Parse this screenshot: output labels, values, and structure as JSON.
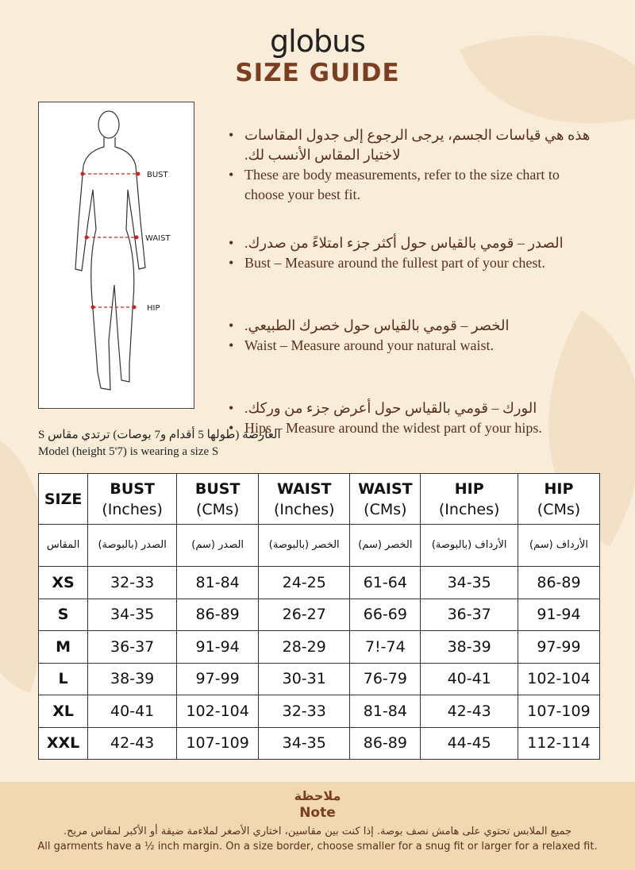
{
  "brand": "globus",
  "title": "SIZE GUIDE",
  "figure_labels": {
    "bust": "BUST",
    "waist": "WAIST",
    "hip": "HIP"
  },
  "bullets": [
    {
      "ar": "هذه هي قياسات الجسم، يرجى الرجوع إلى جدول المقاسات لاختيار المقاس الأنسب لك.",
      "en": "These are body measurements, refer to the size chart to choose your best fit."
    },
    {
      "ar": "الصدر – قومي بالقياس حول أكثر جزء امتلاءً من صدرك.",
      "en": "Bust – Measure around the fullest part of your chest."
    },
    {
      "ar": "الخصر – قومي بالقياس حول خصرك الطبيعي.",
      "en": "Waist – Measure around your natural waist."
    },
    {
      "ar": "الورك – قومي بالقياس حول أعرض جزء من وركك.",
      "en": "Hips – Measure around the widest part of your hips."
    }
  ],
  "model": {
    "ar": "العارضة (طولها 5 أقدام و7 بوصات) ترتدي مقاس S",
    "en": "Model (height 5'7) is wearing a size S"
  },
  "table": {
    "headers": [
      [
        "SIZE",
        ""
      ],
      [
        "BUST",
        "(Inches)"
      ],
      [
        "BUST",
        "(CMs)"
      ],
      [
        "WAIST",
        "(Inches)"
      ],
      [
        "WAIST",
        "(CMs)"
      ],
      [
        "HIP",
        "(Inches)"
      ],
      [
        "HIP",
        "(CMs)"
      ]
    ],
    "headers_ar": [
      "المقاس",
      "الصدر (بالبوصة)",
      "الصدر (سم)",
      "الخصر (بالبوصة)",
      "الخصر (سم)",
      "الأرداف (بالبوصة)",
      "الأرداف (سم)"
    ],
    "rows": [
      [
        "XS",
        "32-33",
        "81-84",
        "24-25",
        "61-64",
        "34-35",
        "86-89"
      ],
      [
        "S",
        "34-35",
        "86-89",
        "26-27",
        "66-69",
        "36-37",
        "91-94"
      ],
      [
        "M",
        "36-37",
        "91-94",
        "28-29",
        "7!-74",
        "38-39",
        "97-99"
      ],
      [
        "L",
        "38-39",
        "97-99",
        "30-31",
        "76-79",
        "40-41",
        "102-104"
      ],
      [
        "XL",
        "40-41",
        "102-104",
        "32-33",
        "81-84",
        "42-43",
        "107-109"
      ],
      [
        "XXL",
        "42-43",
        "107-109",
        "34-35",
        "86-89",
        "44-45",
        "112-114"
      ]
    ]
  },
  "note": {
    "title_ar": "ملاحظة",
    "title": "Note",
    "text_ar": "جميع الملابس تحتوي على هامش نصف بوصة. إذا كنت بين مقاسين، اختاري الأصغر لملاءمة ضيقة أو الأكبر لمقاس مريح.",
    "text": "All garments have a ½ inch margin. On a size border, choose smaller for a snug fit or larger for a relaxed fit."
  }
}
